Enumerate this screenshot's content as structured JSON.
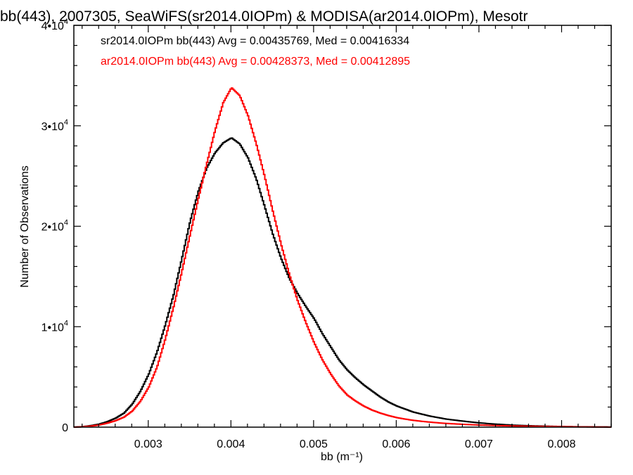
{
  "chart_data": {
    "type": "line",
    "title": "bb(443), 2007305, SeaWiFS(sr2014.0IOPm) & MODISA(ar2014.0IOPm), Mesotr",
    "xlabel": "bb (m⁻¹)",
    "ylabel": "Number of Observations",
    "xlim": [
      0.0021,
      0.0086
    ],
    "ylim": [
      0,
      40000
    ],
    "x_ticks": [
      {
        "value": 0.003,
        "label": "0.003"
      },
      {
        "value": 0.004,
        "label": "0.004"
      },
      {
        "value": 0.005,
        "label": "0.005"
      },
      {
        "value": 0.006,
        "label": "0.006"
      },
      {
        "value": 0.007,
        "label": "0.007"
      },
      {
        "value": 0.008,
        "label": "0.008"
      }
    ],
    "y_ticks": [
      {
        "value": 0,
        "mant": "0",
        "exp": ""
      },
      {
        "value": 10000,
        "mant": "1•10",
        "exp": "4"
      },
      {
        "value": 20000,
        "mant": "2•10",
        "exp": "4"
      },
      {
        "value": 30000,
        "mant": "3•10",
        "exp": "4"
      },
      {
        "value": 40000,
        "mant": "4•10",
        "exp": "4"
      }
    ],
    "grid": false,
    "legend": [
      {
        "text": "sr2014.0IOPm bb(443) Avg = 0.00435769, Med = 0.00416334",
        "color": "#000000"
      },
      {
        "text": "ar2014.0IOPm bb(443) Avg = 0.00428373, Med = 0.00412895",
        "color": "#ff0000"
      }
    ],
    "series": [
      {
        "color": "#000000",
        "points": [
          [
            0.0021,
            0
          ],
          [
            0.0022,
            50
          ],
          [
            0.0023,
            150
          ],
          [
            0.0024,
            300
          ],
          [
            0.0025,
            550
          ],
          [
            0.0026,
            900
          ],
          [
            0.0027,
            1400
          ],
          [
            0.0028,
            2300
          ],
          [
            0.0029,
            3600
          ],
          [
            0.003,
            5300
          ],
          [
            0.0031,
            7500
          ],
          [
            0.0032,
            10200
          ],
          [
            0.0033,
            13200
          ],
          [
            0.0034,
            16800
          ],
          [
            0.0035,
            20500
          ],
          [
            0.0036,
            23500
          ],
          [
            0.0037,
            25800
          ],
          [
            0.0038,
            27300
          ],
          [
            0.0039,
            28300
          ],
          [
            0.004,
            28800
          ],
          [
            0.0041,
            28200
          ],
          [
            0.0042,
            26800
          ],
          [
            0.0043,
            24700
          ],
          [
            0.0044,
            22000
          ],
          [
            0.0045,
            19200
          ],
          [
            0.0046,
            16800
          ],
          [
            0.0047,
            14800
          ],
          [
            0.0048,
            13300
          ],
          [
            0.0049,
            12000
          ],
          [
            0.005,
            10800
          ],
          [
            0.0051,
            9300
          ],
          [
            0.0052,
            8000
          ],
          [
            0.0053,
            6700
          ],
          [
            0.0054,
            5700
          ],
          [
            0.0055,
            4900
          ],
          [
            0.0056,
            4200
          ],
          [
            0.0057,
            3600
          ],
          [
            0.0058,
            3000
          ],
          [
            0.0059,
            2500
          ],
          [
            0.006,
            2100
          ],
          [
            0.0061,
            1800
          ],
          [
            0.0062,
            1500
          ],
          [
            0.0063,
            1300
          ],
          [
            0.0064,
            1100
          ],
          [
            0.0065,
            950
          ],
          [
            0.0066,
            800
          ],
          [
            0.0068,
            600
          ],
          [
            0.007,
            420
          ],
          [
            0.0072,
            300
          ],
          [
            0.0074,
            200
          ],
          [
            0.0076,
            140
          ],
          [
            0.0078,
            100
          ],
          [
            0.008,
            60
          ],
          [
            0.0082,
            40
          ],
          [
            0.0084,
            20
          ],
          [
            0.0086,
            10
          ]
        ]
      },
      {
        "color": "#ff0000",
        "points": [
          [
            0.0021,
            0
          ],
          [
            0.0022,
            40
          ],
          [
            0.0023,
            100
          ],
          [
            0.0024,
            220
          ],
          [
            0.0025,
            400
          ],
          [
            0.0026,
            650
          ],
          [
            0.0027,
            1000
          ],
          [
            0.0028,
            1600
          ],
          [
            0.0029,
            2600
          ],
          [
            0.003,
            4000
          ],
          [
            0.0031,
            6000
          ],
          [
            0.0032,
            8800
          ],
          [
            0.0033,
            12000
          ],
          [
            0.0034,
            15500
          ],
          [
            0.0035,
            19200
          ],
          [
            0.0036,
            22800
          ],
          [
            0.0037,
            26200
          ],
          [
            0.0038,
            29500
          ],
          [
            0.0039,
            32300
          ],
          [
            0.004,
            33800
          ],
          [
            0.0041,
            33000
          ],
          [
            0.0042,
            31000
          ],
          [
            0.0043,
            28200
          ],
          [
            0.0044,
            25000
          ],
          [
            0.0045,
            21500
          ],
          [
            0.0046,
            18200
          ],
          [
            0.0047,
            15200
          ],
          [
            0.0048,
            12600
          ],
          [
            0.0049,
            10400
          ],
          [
            0.005,
            8400
          ],
          [
            0.0051,
            6700
          ],
          [
            0.0052,
            5300
          ],
          [
            0.0053,
            4100
          ],
          [
            0.0054,
            3200
          ],
          [
            0.0055,
            2600
          ],
          [
            0.0056,
            2100
          ],
          [
            0.0057,
            1700
          ],
          [
            0.0058,
            1400
          ],
          [
            0.0059,
            1150
          ],
          [
            0.006,
            950
          ],
          [
            0.0061,
            800
          ],
          [
            0.0062,
            680
          ],
          [
            0.0063,
            580
          ],
          [
            0.0064,
            500
          ],
          [
            0.0065,
            430
          ],
          [
            0.0066,
            370
          ],
          [
            0.0068,
            280
          ],
          [
            0.007,
            210
          ],
          [
            0.0072,
            160
          ],
          [
            0.0074,
            120
          ],
          [
            0.0076,
            90
          ],
          [
            0.0078,
            70
          ],
          [
            0.008,
            50
          ],
          [
            0.0082,
            30
          ],
          [
            0.0084,
            20
          ],
          [
            0.0086,
            10
          ]
        ]
      }
    ]
  }
}
